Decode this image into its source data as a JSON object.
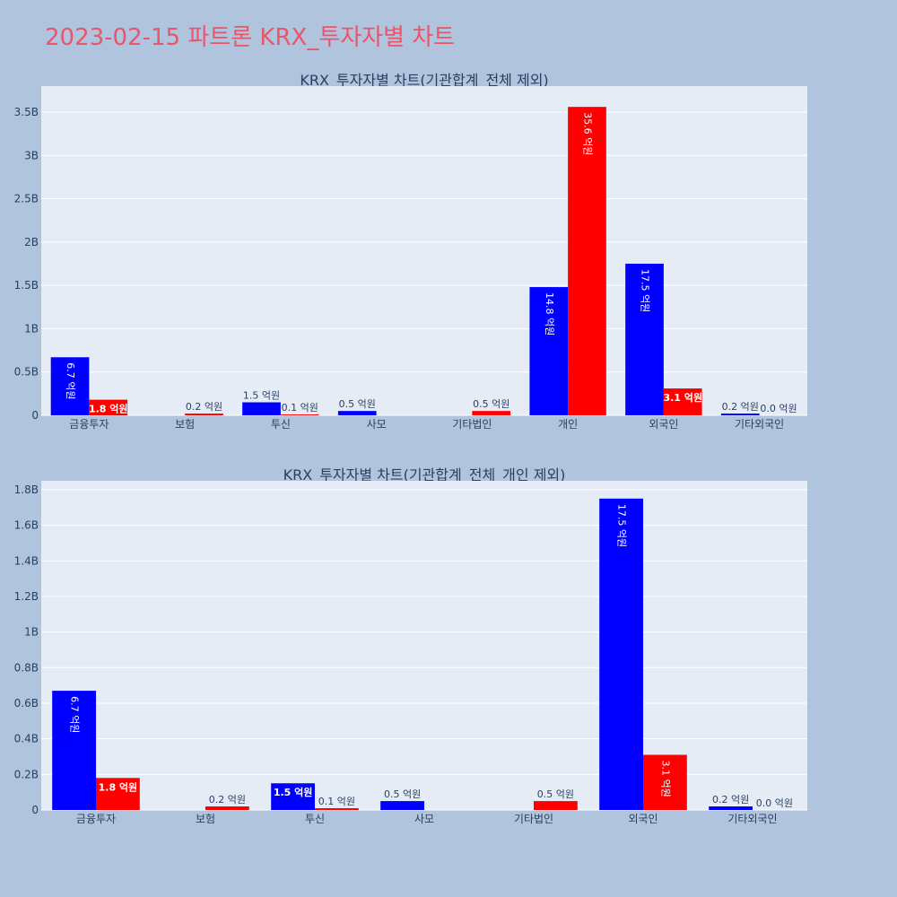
{
  "title": "2023-02-15 파트론 KRX_투자자별 차트",
  "colors": {
    "page_bg": "#b0c4de",
    "plot_bg": "#e5ecf6",
    "title": "#e8566b",
    "series_a": "#0000ff",
    "series_b": "#ff0000",
    "text": "#2a3f5f"
  },
  "chart_data": [
    {
      "type": "bar",
      "title": "KRX_투자자별 차트(기관합계_전체 제외)",
      "categories": [
        "금융투자",
        "보험",
        "투신",
        "사모",
        "기타법인",
        "개인",
        "외국인",
        "기타외국인"
      ],
      "ylim": [
        0,
        3800000000
      ],
      "yticks": [
        0,
        500000000,
        1000000000,
        1500000000,
        2000000000,
        2500000000,
        3000000000,
        3500000000
      ],
      "ytick_labels": [
        "0",
        "0.5B",
        "1B",
        "1.5B",
        "2B",
        "2.5B",
        "3B",
        "3.5B"
      ],
      "grid": true,
      "series": [
        {
          "color": "#0000ff",
          "values": [
            670000000,
            null,
            150000000,
            50000000,
            null,
            1480000000,
            1750000000,
            20000000
          ],
          "labels": [
            "6.7 억원",
            "",
            "1.5 억원",
            "0.5 억원",
            "",
            "14.8 억원",
            "17.5 억원",
            "0.2 억원"
          ]
        },
        {
          "color": "#ff0000",
          "values": [
            180000000,
            20000000,
            10000000,
            null,
            50000000,
            3560000000,
            310000000,
            0
          ],
          "labels": [
            "1.8 억원",
            "0.2 억원",
            "0.1 억원",
            "",
            "0.5 억원",
            "35.6 억원",
            "3.1 억원",
            "0.0 억원"
          ]
        }
      ]
    },
    {
      "type": "bar",
      "title": "KRX_투자자별 차트(기관합계_전체_개인 제외)",
      "categories": [
        "금융투자",
        "보험",
        "투신",
        "사모",
        "기타법인",
        "외국인",
        "기타외국인"
      ],
      "ylim": [
        0,
        1850000000
      ],
      "yticks": [
        0,
        200000000,
        400000000,
        600000000,
        800000000,
        1000000000,
        1200000000,
        1400000000,
        1600000000,
        1800000000
      ],
      "ytick_labels": [
        "0",
        "0.2B",
        "0.4B",
        "0.6B",
        "0.8B",
        "1B",
        "1.2B",
        "1.4B",
        "1.6B",
        "1.8B"
      ],
      "grid": true,
      "series": [
        {
          "color": "#0000ff",
          "values": [
            670000000,
            null,
            150000000,
            50000000,
            null,
            1750000000,
            20000000
          ],
          "labels": [
            "6.7 억원",
            "",
            "1.5 억원",
            "0.5 억원",
            "",
            "17.5 억원",
            "0.2 억원"
          ]
        },
        {
          "color": "#ff0000",
          "values": [
            180000000,
            20000000,
            10000000,
            null,
            50000000,
            310000000,
            0
          ],
          "labels": [
            "1.8 억원",
            "0.2 억원",
            "0.1 억원",
            "",
            "0.5 억원",
            "3.1 억원",
            "0.0 억원"
          ]
        }
      ]
    }
  ]
}
